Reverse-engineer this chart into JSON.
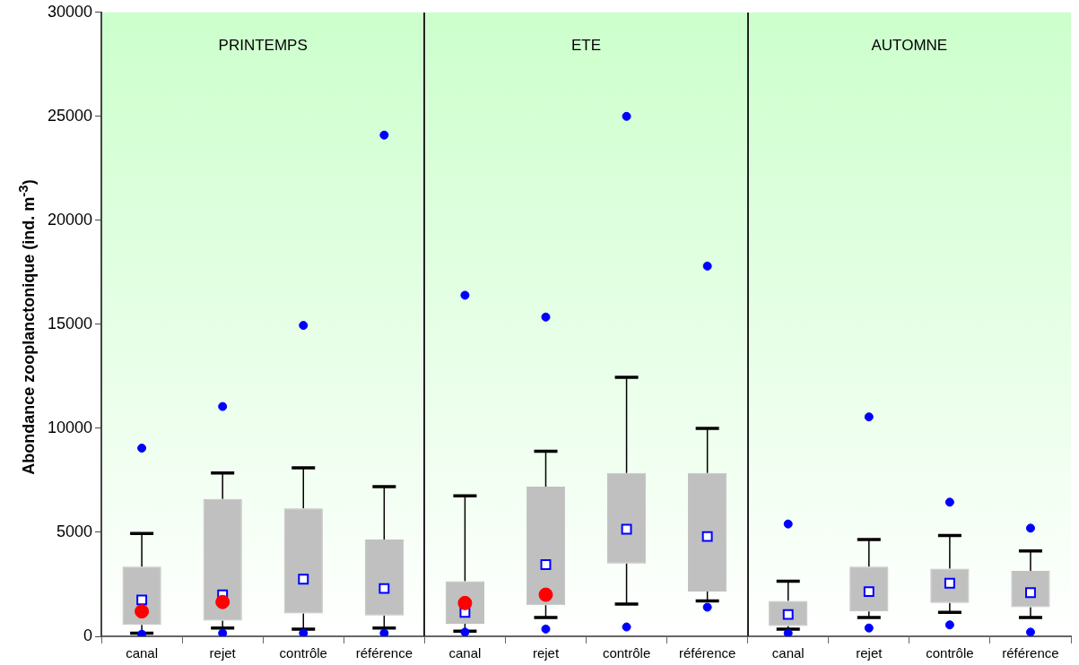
{
  "chart_data": {
    "type": "box",
    "ylabel": "Abondance zooplanctonique (ind. m$^{-3}$)",
    "categories": [
      "canal",
      "rejet",
      "contrôle",
      "référence",
      "canal",
      "rejet",
      "contrôle",
      "référence",
      "canal",
      "rejet",
      "contrôle",
      "référence"
    ],
    "annotations": [
      "PRINTEMPS",
      "ETE",
      "AUTOMNE"
    ],
    "ylim": [
      0,
      30000
    ],
    "yticks": [
      0,
      5000,
      10000,
      15000,
      20000,
      25000,
      30000
    ],
    "grid": false,
    "legend": false,
    "series": [
      {
        "color": "#c0c0c0",
        "boxes": [
          {
            "low": 150,
            "q1": 550,
            "q3": 3350,
            "high": 4950,
            "mean": 1750,
            "outliers": [
              9050,
              100
            ]
          },
          {
            "low": 400,
            "q1": 750,
            "q3": 6600,
            "high": 7850,
            "mean": 2000,
            "outliers": [
              11050,
              150
            ]
          },
          {
            "low": 350,
            "q1": 1100,
            "q3": 6150,
            "high": 8100,
            "mean": 2750,
            "outliers": [
              14950,
              150
            ]
          },
          {
            "low": 400,
            "q1": 1000,
            "q3": 4650,
            "high": 7200,
            "mean": 2300,
            "outliers": [
              24100,
              150
            ]
          },
          {
            "low": 250,
            "q1": 600,
            "q3": 2650,
            "high": 6750,
            "mean": 1150,
            "outliers": [
              16400,
              200
            ]
          },
          {
            "low": 900,
            "q1": 1500,
            "q3": 7200,
            "high": 8900,
            "mean": 3450,
            "outliers": [
              15350,
              350
            ]
          },
          {
            "low": 1550,
            "q1": 3500,
            "q3": 7850,
            "high": 12450,
            "mean": 5150,
            "outliers": [
              25000,
              450
            ]
          },
          {
            "low": 1700,
            "q1": 2150,
            "q3": 7850,
            "high": 10000,
            "mean": 4800,
            "outliers": [
              17800,
              1400
            ]
          },
          {
            "low": 350,
            "q1": 500,
            "q3": 1700,
            "high": 2650,
            "mean": 1050,
            "outliers": [
              5400,
              150
            ]
          },
          {
            "low": 900,
            "q1": 1200,
            "q3": 3350,
            "high": 4650,
            "mean": 2150,
            "outliers": [
              10550,
              400
            ]
          },
          {
            "low": 1150,
            "q1": 1600,
            "q3": 3250,
            "high": 4850,
            "mean": 2550,
            "outliers": [
              6450,
              550
            ]
          },
          {
            "low": 900,
            "q1": 1400,
            "q3": 3150,
            "high": 4100,
            "mean": 2100,
            "outliers": [
              5200,
              200
            ]
          }
        ]
      },
      {
        "type": "scatter",
        "color": "#ff0000",
        "values": [
          1200,
          1650,
          null,
          null,
          1600,
          2000,
          null,
          null,
          null,
          null,
          null,
          null
        ]
      }
    ]
  }
}
